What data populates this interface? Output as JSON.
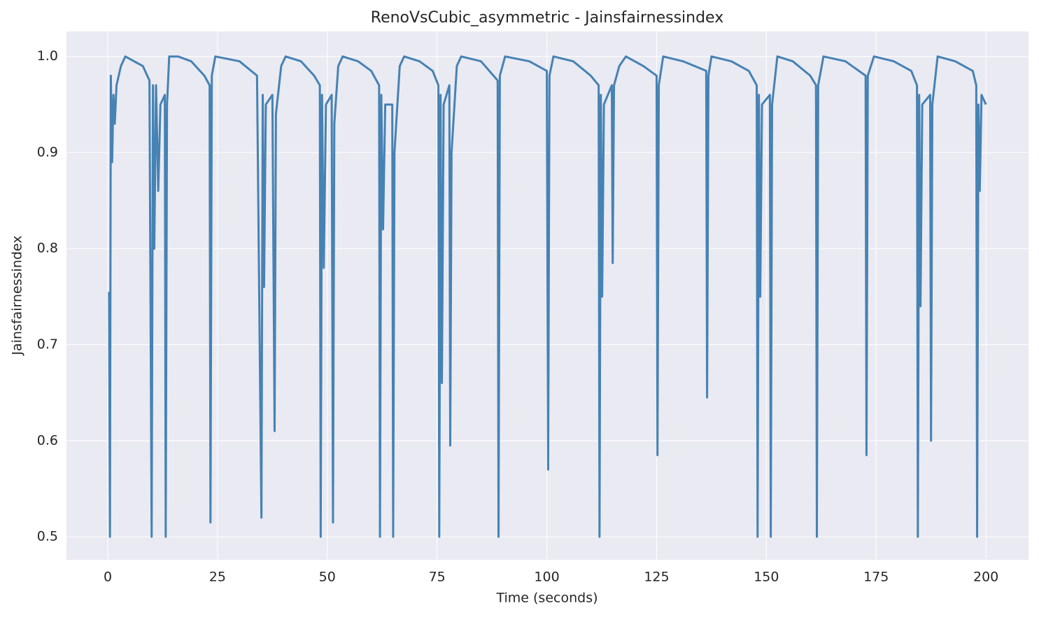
{
  "chart_data": {
    "type": "line",
    "title": "RenoVsCubic_asymmetric - Jainsfairnessindex",
    "xlabel": "Time (seconds)",
    "ylabel": "Jainsfairnessindex",
    "xlim": [
      -9.4,
      209.7
    ],
    "ylim": [
      0.476,
      1.026
    ],
    "xticks": [
      0,
      25,
      50,
      75,
      100,
      125,
      150,
      175,
      200
    ],
    "yticks": [
      0.5,
      0.6,
      0.7,
      0.8,
      0.9,
      {
        "value": 1,
        "label": "1.0"
      }
    ],
    "grid": true,
    "x": [
      0.3,
      0.5,
      0.7,
      1.0,
      1.3,
      1.6,
      2.0,
      3.0,
      4.0,
      6.0,
      8.0,
      9.5,
      10.0,
      10.3,
      10.6,
      11.0,
      11.5,
      12.0,
      13.0,
      13.2,
      13.5,
      14.0,
      16.0,
      19.0,
      22.0,
      23.2,
      23.4,
      23.7,
      24.5,
      30.0,
      34.0,
      35.0,
      35.3,
      35.6,
      36.0,
      37.5,
      38.0,
      38.3,
      39.5,
      40.5,
      44.0,
      47.0,
      48.3,
      48.5,
      48.8,
      49.2,
      49.7,
      51.0,
      51.3,
      51.6,
      52.5,
      53.5,
      57.0,
      60.0,
      61.8,
      62.0,
      62.3,
      62.7,
      63.2,
      64.8,
      65.0,
      65.3,
      66.5,
      67.5,
      71.0,
      74.0,
      75.3,
      75.5,
      75.8,
      76.1,
      76.5,
      77.8,
      78.0,
      78.3,
      79.5,
      80.5,
      85.0,
      88.8,
      89.0,
      89.3,
      90.5,
      96.0,
      100.0,
      100.3,
      100.6,
      101.5,
      106.0,
      110.0,
      111.8,
      112.0,
      112.3,
      112.6,
      113.0,
      114.8,
      115.0,
      115.3,
      116.5,
      118.0,
      122.0,
      125.0,
      125.2,
      125.5,
      126.5,
      131.0,
      136.3,
      136.5,
      136.8,
      137.5,
      142.0,
      146.0,
      147.8,
      148.0,
      148.3,
      148.6,
      149.0,
      150.8,
      151.0,
      151.3,
      152.5,
      156.0,
      160.0,
      161.3,
      161.5,
      161.8,
      163.0,
      168.0,
      172.6,
      172.8,
      173.1,
      174.5,
      179.0,
      183.0,
      184.3,
      184.5,
      184.8,
      185.1,
      185.5,
      187.3,
      187.5,
      187.8,
      189.0,
      193.0,
      197.0,
      197.8,
      198.0,
      198.3,
      198.6,
      199.0,
      200.0
    ],
    "series": [
      {
        "name": "Jainsfairnessindex",
        "color": "#4682b4",
        "values": [
          0.755,
          0.5,
          0.98,
          0.89,
          0.96,
          0.93,
          0.97,
          0.99,
          1.0,
          0.995,
          0.99,
          0.975,
          0.5,
          0.97,
          0.8,
          0.97,
          0.86,
          0.95,
          0.96,
          0.5,
          0.95,
          1.0,
          1.0,
          0.995,
          0.98,
          0.97,
          0.515,
          0.98,
          1.0,
          0.995,
          0.98,
          0.52,
          0.96,
          0.76,
          0.95,
          0.96,
          0.61,
          0.94,
          0.99,
          1.0,
          0.995,
          0.98,
          0.97,
          0.5,
          0.96,
          0.78,
          0.95,
          0.96,
          0.515,
          0.93,
          0.99,
          1.0,
          0.995,
          0.985,
          0.97,
          0.5,
          0.96,
          0.82,
          0.95,
          0.95,
          0.5,
          0.9,
          0.99,
          1.0,
          0.995,
          0.985,
          0.97,
          0.5,
          0.96,
          0.66,
          0.95,
          0.97,
          0.595,
          0.9,
          0.99,
          1.0,
          0.995,
          0.975,
          0.5,
          0.98,
          1.0,
          0.995,
          0.985,
          0.57,
          0.98,
          1.0,
          0.995,
          0.98,
          0.97,
          0.5,
          0.96,
          0.75,
          0.95,
          0.97,
          0.785,
          0.97,
          0.99,
          1.0,
          0.99,
          0.98,
          0.585,
          0.97,
          1.0,
          0.995,
          0.985,
          0.645,
          0.98,
          1.0,
          0.995,
          0.985,
          0.97,
          0.5,
          0.96,
          0.75,
          0.95,
          0.96,
          0.5,
          0.95,
          1.0,
          0.995,
          0.98,
          0.97,
          0.5,
          0.97,
          1.0,
          0.995,
          0.98,
          0.585,
          0.98,
          1.0,
          0.995,
          0.985,
          0.97,
          0.5,
          0.96,
          0.74,
          0.95,
          0.96,
          0.6,
          0.95,
          1.0,
          0.995,
          0.985,
          0.97,
          0.5,
          0.95,
          0.86,
          0.96,
          0.95
        ]
      }
    ]
  }
}
